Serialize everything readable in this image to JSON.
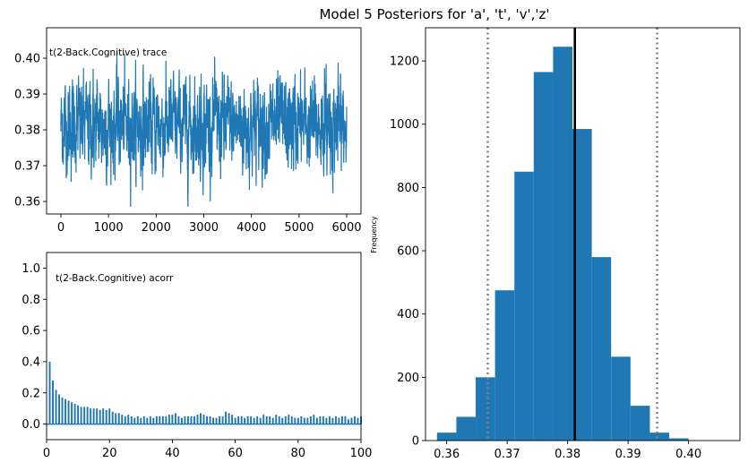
{
  "title": "Model 5 Posteriors for 'a', 't', 'v','z'",
  "colors": {
    "series": "#1f77b4",
    "mean_line": "#000000",
    "ci_line": "#808080"
  },
  "chart_data": [
    {
      "id": "trace",
      "type": "line",
      "annotation": "t(2-Back.Cognitive) trace",
      "xlim": [
        -300,
        6300
      ],
      "ylim": [
        0.3565,
        0.4085
      ],
      "xticks": [
        0,
        1000,
        2000,
        3000,
        4000,
        5000,
        6000
      ],
      "yticks": [
        0.36,
        0.37,
        0.38,
        0.39,
        0.4
      ],
      "n_samples": 6000,
      "mean": 0.3813,
      "min": 0.3585,
      "max": 0.4055,
      "band_low": 0.368,
      "band_high": 0.394
    },
    {
      "id": "acorr",
      "type": "bar",
      "annotation": "t(2-Back.Cognitive) acorr",
      "xlim": [
        0,
        100
      ],
      "ylim": [
        -0.1,
        1.1
      ],
      "xticks": [
        0,
        20,
        40,
        60,
        80,
        100
      ],
      "yticks": [
        0.0,
        0.2,
        0.4,
        0.6,
        0.8,
        1.0
      ],
      "lags": [
        1,
        2,
        3,
        4,
        5,
        6,
        7,
        8,
        9,
        10,
        11,
        12,
        13,
        14,
        15,
        16,
        17,
        18,
        19,
        20,
        21,
        22,
        23,
        24,
        25,
        26,
        27,
        28,
        29,
        30,
        31,
        32,
        33,
        34,
        35,
        36,
        37,
        38,
        39,
        40,
        41,
        42,
        43,
        44,
        45,
        46,
        47,
        48,
        49,
        50,
        51,
        52,
        53,
        54,
        55,
        56,
        57,
        58,
        59,
        60,
        61,
        62,
        63,
        64,
        65,
        66,
        67,
        68,
        69,
        70,
        71,
        72,
        73,
        74,
        75,
        76,
        77,
        78,
        79,
        80,
        81,
        82,
        83,
        84,
        85,
        86,
        87,
        88,
        89,
        90,
        91,
        92,
        93,
        94,
        95,
        96,
        97,
        98,
        99,
        100
      ],
      "values": [
        0.4,
        0.28,
        0.22,
        0.19,
        0.17,
        0.16,
        0.15,
        0.14,
        0.13,
        0.12,
        0.11,
        0.11,
        0.11,
        0.1,
        0.1,
        0.1,
        0.09,
        0.1,
        0.09,
        0.1,
        0.08,
        0.07,
        0.07,
        0.06,
        0.05,
        0.06,
        0.05,
        0.04,
        0.05,
        0.04,
        0.05,
        0.04,
        0.05,
        0.04,
        0.05,
        0.05,
        0.05,
        0.05,
        0.06,
        0.06,
        0.07,
        0.05,
        0.04,
        0.05,
        0.05,
        0.05,
        0.05,
        0.06,
        0.07,
        0.06,
        0.05,
        0.05,
        0.04,
        0.04,
        0.05,
        0.05,
        0.08,
        0.07,
        0.06,
        0.04,
        0.05,
        0.05,
        0.04,
        0.05,
        0.05,
        0.04,
        0.05,
        0.04,
        0.06,
        0.05,
        0.05,
        0.04,
        0.06,
        0.05,
        0.04,
        0.05,
        0.06,
        0.05,
        0.04,
        0.04,
        0.05,
        0.04,
        0.04,
        0.05,
        0.06,
        0.04,
        0.05,
        0.05,
        0.04,
        0.05,
        0.04,
        0.05,
        0.04,
        0.05,
        0.05,
        0.03,
        0.04,
        0.05,
        0.04,
        0.05
      ]
    },
    {
      "id": "histogram",
      "type": "bar",
      "ylabel": "Frequency",
      "xlim": [
        0.3565,
        0.4085
      ],
      "ylim": [
        0,
        1305
      ],
      "xticks": [
        0.36,
        0.37,
        0.38,
        0.39,
        0.4
      ],
      "yticks": [
        0,
        200,
        400,
        600,
        800,
        1000,
        1200
      ],
      "bin_edges": [
        0.3584,
        0.3616,
        0.3648,
        0.368,
        0.3712,
        0.3744,
        0.3776,
        0.3808,
        0.384,
        0.3872,
        0.3904,
        0.3936,
        0.3968,
        0.4,
        0.4032,
        0.4064
      ],
      "counts": [
        25,
        75,
        200,
        475,
        850,
        1165,
        1245,
        985,
        580,
        265,
        110,
        25,
        7,
        0,
        0
      ],
      "mean_line": 0.3812,
      "ci_lines": [
        0.3668,
        0.3948
      ]
    }
  ]
}
